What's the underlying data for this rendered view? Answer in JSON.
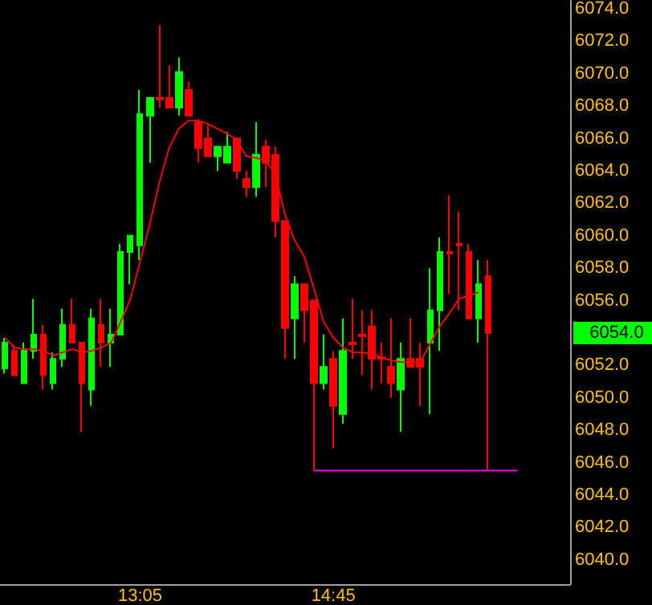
{
  "chart_data": {
    "type": "candlestick",
    "categories": [
      null,
      null,
      null,
      null,
      null,
      null,
      null,
      null,
      null,
      null,
      null,
      null,
      null,
      null,
      "13:05",
      null,
      null,
      null,
      null,
      null,
      null,
      null,
      null,
      null,
      null,
      null,
      null,
      null,
      null,
      null,
      null,
      null,
      null,
      null,
      "14:45",
      null,
      null,
      null,
      null,
      null,
      null,
      null,
      null,
      null,
      null,
      null,
      null,
      null,
      null,
      null,
      null,
      null,
      null,
      null,
      null,
      null,
      null,
      null,
      null
    ],
    "ohlc": [
      [
        6051.8,
        6053.7,
        6051.5,
        6053.4
      ],
      [
        6052.9,
        6053.3,
        6051.4,
        6051.4
      ],
      [
        6050.9,
        6053.4,
        6050.9,
        6052.9
      ],
      [
        6052.9,
        6056.1,
        6052.4,
        6053.9
      ],
      [
        6053.9,
        6054.5,
        6050.5,
        6051.4
      ],
      [
        6050.9,
        6052.8,
        6050.5,
        6052.4
      ],
      [
        6052.4,
        6055.5,
        6051.9,
        6054.5
      ],
      [
        6054.5,
        6056.1,
        6053.4,
        6053.4
      ],
      [
        6053.4,
        6053.4,
        6047.9,
        6050.9
      ],
      [
        6050.5,
        6055.5,
        6049.5,
        6054.9
      ],
      [
        6054.5,
        6056.1,
        6051.9,
        6053.4
      ],
      [
        6053.4,
        6055.5,
        6051.9,
        6053.9
      ],
      [
        6053.9,
        6059.5,
        6053.9,
        6059.0
      ],
      [
        6059.0,
        6060.0,
        6057.0,
        6060.0
      ],
      [
        6059.4,
        6069.0,
        6058.5,
        6067.5
      ],
      [
        6067.4,
        6068.5,
        6064.5,
        6068.5
      ],
      [
        6068.5,
        6073.0,
        6067.9,
        6068.4
      ],
      [
        6068.5,
        6070.5,
        6067.9,
        6067.9
      ],
      [
        6067.9,
        6071.0,
        6067.4,
        6070.1
      ],
      [
        6069.0,
        6069.5,
        6067.4,
        6067.4
      ],
      [
        6067.0,
        6067.2,
        6064.5,
        6065.4
      ],
      [
        6066.0,
        6066.9,
        6064.9,
        6064.9
      ],
      [
        6064.9,
        6065.5,
        6064.0,
        6065.5
      ],
      [
        6064.5,
        6066.4,
        6064.5,
        6065.5
      ],
      [
        6066.0,
        6066.0,
        6063.5,
        6064.0
      ],
      [
        6063.5,
        6064.0,
        6062.4,
        6063.0
      ],
      [
        6063.0,
        6067.0,
        6062.4,
        6065.0
      ],
      [
        6065.5,
        6065.9,
        6063.0,
        6064.5
      ],
      [
        6065.0,
        6065.5,
        6059.9,
        6060.9
      ],
      [
        6060.9,
        6060.9,
        6052.4,
        6054.3
      ],
      [
        6054.9,
        6057.5,
        6052.4,
        6057.0
      ],
      [
        6057.0,
        6057.0,
        6053.4,
        6055.4
      ],
      [
        6056.0,
        6056.0,
        6045.5,
        6050.9
      ],
      [
        6050.9,
        6053.9,
        6050.5,
        6051.9
      ],
      [
        6052.4,
        6052.9,
        6046.9,
        6049.5
      ],
      [
        6049.0,
        6054.9,
        6048.4,
        6052.9
      ],
      [
        6053.4,
        6056.1,
        6052.4,
        6053.3
      ],
      [
        6053.9,
        6055.4,
        6051.4,
        6053.8
      ],
      [
        6054.4,
        6055.4,
        6050.5,
        6052.4
      ],
      [
        6052.5,
        6053.4,
        6050.9,
        6052.4
      ],
      [
        6051.9,
        6054.9,
        6050.0,
        6050.9
      ],
      [
        6050.5,
        6053.4,
        6047.9,
        6052.4
      ],
      [
        6052.4,
        6054.9,
        6051.9,
        6051.9
      ],
      [
        6052.4,
        6053.4,
        6049.5,
        6051.9
      ],
      [
        6053.4,
        6058.0,
        6049.0,
        6055.4
      ],
      [
        6055.4,
        6059.9,
        6052.9,
        6059.0
      ],
      [
        6059.0,
        6062.5,
        6056.4,
        6058.9
      ],
      [
        6059.5,
        6061.5,
        6055.4,
        6059.4
      ],
      [
        6059.0,
        6059.5,
        6054.9,
        6054.9
      ],
      [
        6054.9,
        6058.5,
        6053.4,
        6057.0
      ],
      [
        6057.5,
        6058.5,
        6045.5,
        6054.0
      ],
      null,
      null,
      null,
      null,
      null,
      null,
      null,
      null
    ],
    "colors": [
      "#00ff00",
      "#ff0000",
      "#00ff00",
      "#00ff00",
      "#ff0000",
      "#00ff00",
      "#00ff00",
      "#ff0000",
      "#ff0000",
      "#00ff00",
      "#ff0000",
      "#00ff00",
      "#00ff00",
      "#00ff00",
      "#00ff00",
      "#00ff00",
      "#ff0000",
      "#ff0000",
      "#00ff00",
      "#ff0000",
      "#ff0000",
      "#ff0000",
      "#00ff00",
      "#00ff00",
      "#ff0000",
      "#ff0000",
      "#00ff00",
      "#ff0000",
      "#ff0000",
      "#ff0000",
      "#00ff00",
      "#ff0000",
      "#ff0000",
      "#00ff00",
      "#ff0000",
      "#00ff00",
      "#ff0000",
      "#ff0000",
      "#ff0000",
      "#ff0000",
      "#ff0000",
      "#00ff00",
      "#ff0000",
      "#ff0000",
      "#00ff00",
      "#00ff00",
      "#ff0000",
      "#ff0000",
      "#ff0000",
      "#00ff00",
      "#ff0000",
      null,
      null,
      null,
      null,
      null,
      null,
      null,
      null
    ],
    "series": [
      {
        "type": "line",
        "color": "#ff0000",
        "values": [
          6053.7,
          6053.1,
          6053.0,
          6053.0,
          6052.9,
          6052.6,
          6052.8,
          6053.0,
          6052.8,
          6052.9,
          6053.1,
          6053.4,
          6054.7,
          6056.1,
          6058.4,
          6060.7,
          6063.3,
          6065.4,
          6066.6,
          6067.1,
          6067.1,
          6066.9,
          6066.6,
          6066.3,
          6065.9,
          6064.9,
          6064.8,
          6064.6,
          6063.8,
          6061.3,
          6059.7,
          6058.7,
          6056.7,
          6054.7,
          6053.7,
          6053.1,
          6052.8,
          6052.8,
          6052.7,
          6052.5,
          6052.3,
          6052.2,
          6052.2,
          6052.2,
          6053.3,
          6054.4,
          6055.2,
          6056.1,
          6056.3,
          6056.5,
          null,
          null,
          null,
          null,
          null,
          null,
          null,
          null,
          null
        ]
      },
      {
        "type": "line",
        "color": "#ff00ff",
        "values": [
          null,
          null,
          null,
          null,
          null,
          null,
          null,
          null,
          null,
          null,
          null,
          null,
          null,
          null,
          null,
          null,
          null,
          null,
          null,
          null,
          null,
          null,
          null,
          null,
          null,
          null,
          null,
          null,
          null,
          null,
          null,
          null,
          6045.5,
          6045.5,
          6045.5,
          6045.5,
          6045.5,
          6045.5,
          6045.5,
          6045.5,
          6045.5,
          6045.5,
          6045.5,
          6045.5,
          6045.5,
          6045.5,
          6045.5,
          6045.5,
          6045.5,
          6045.5,
          6045.5,
          6045.5,
          6045.5,
          6045.5,
          null,
          null,
          null,
          null,
          null
        ]
      }
    ],
    "ylim": [
      6038.5,
      6074.5
    ],
    "yticks": [
      {
        "value": 6040,
        "label": "6040.0"
      },
      {
        "value": 6042,
        "label": "6042.0"
      },
      {
        "value": 6044,
        "label": "6044.0"
      },
      {
        "value": 6046,
        "label": "6046.0"
      },
      {
        "value": 6048,
        "label": "6048.0"
      },
      {
        "value": 6050,
        "label": "6050.0"
      },
      {
        "value": 6052,
        "label": "6052.0"
      },
      {
        "value": 6056,
        "label": "6056.0"
      },
      {
        "value": 6058,
        "label": "6058.0"
      },
      {
        "value": 6060,
        "label": "6060.0"
      },
      {
        "value": 6062,
        "label": "6062.0"
      },
      {
        "value": 6064,
        "label": "6064.0"
      },
      {
        "value": 6066,
        "label": "6066.0"
      },
      {
        "value": 6068,
        "label": "6068.0"
      },
      {
        "value": 6070,
        "label": "6070.0"
      },
      {
        "value": 6072,
        "label": "6072.0"
      },
      {
        "value": 6074,
        "label": "6074.0"
      }
    ],
    "annotations": [
      "6054.0"
    ],
    "grid": false,
    "marker": "none",
    "line_style": "solid"
  }
}
